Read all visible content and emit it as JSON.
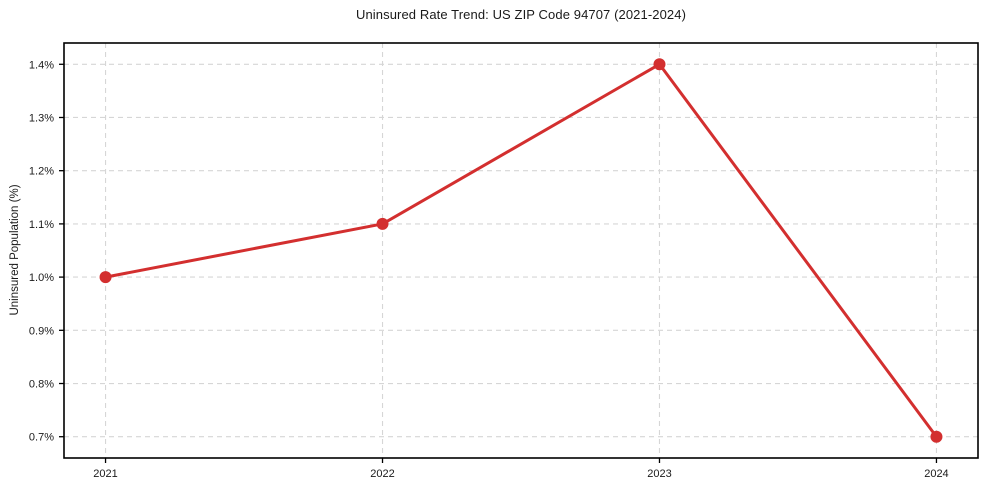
{
  "figure": {
    "title": "Uninsured Rate Trend: US ZIP Code 94707 (2021-2024)",
    "y_axis_title": "Uninsured Population (%)"
  },
  "chart_data": {
    "type": "line",
    "title": "Uninsured Rate Trend: US ZIP Code 94707 (2021-2024)",
    "xlabel": "",
    "ylabel": "Uninsured Population (%)",
    "x": [
      2021,
      2022,
      2023,
      2024
    ],
    "x_tick_labels": [
      "2021",
      "2022",
      "2023",
      "2024"
    ],
    "values": [
      1.0,
      1.1,
      1.4,
      0.7
    ],
    "y_ticks": [
      0.7,
      0.8,
      0.9,
      1.0,
      1.1,
      1.2,
      1.3,
      1.4
    ],
    "y_tick_labels": [
      "0.7%",
      "0.8%",
      "0.9%",
      "1.0%",
      "1.1%",
      "1.2%",
      "1.3%",
      "1.4%"
    ],
    "xlim": [
      2020.85,
      2024.15
    ],
    "ylim": [
      0.66,
      1.44
    ],
    "grid": true,
    "grid_style": "dashed",
    "legend": false,
    "legend_position": "none",
    "line_color": "#d32f2f",
    "marker_color": "#d32f2f",
    "marker_shape": "circle",
    "grid_color": "#d6d6d6",
    "axis_color": "#000000",
    "background_color": "#ffffff"
  }
}
